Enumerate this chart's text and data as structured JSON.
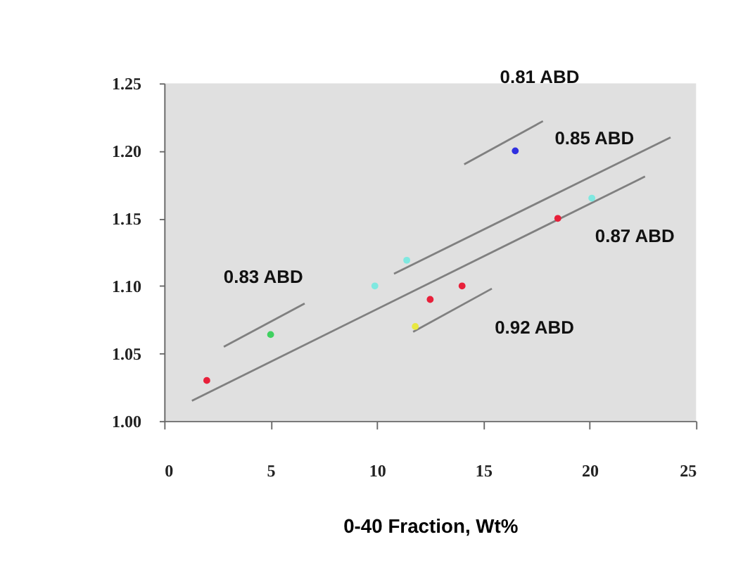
{
  "chart_data": {
    "type": "scatter",
    "xlabel": "0-40 Fraction, Wt%",
    "xlim": [
      0,
      25
    ],
    "xticks": [
      0,
      5,
      10,
      15,
      20,
      25
    ],
    "ylim": [
      1.0,
      1.25
    ],
    "yticks": [
      {
        "value": 1.0,
        "label": "1.00"
      },
      {
        "value": 1.05,
        "label": "1.05"
      },
      {
        "value": 1.1,
        "label": "1.10"
      },
      {
        "value": 1.15,
        "label": "1.15"
      },
      {
        "value": 1.2,
        "label": "1.20"
      },
      {
        "value": 1.25,
        "label": "1.25"
      }
    ],
    "grid": false,
    "series": [
      {
        "type": "line",
        "marker": "none",
        "color": "#808080",
        "x": [
          14.1,
          17.8
        ],
        "values": [
          1.19,
          1.222
        ]
      },
      {
        "type": "line",
        "marker": "none",
        "color": "#808080",
        "x": [
          10.8,
          23.8
        ],
        "values": [
          1.109,
          1.21
        ]
      },
      {
        "type": "line",
        "marker": "none",
        "color": "#808080",
        "x": [
          1.3,
          22.6
        ],
        "values": [
          1.015,
          1.181
        ]
      },
      {
        "type": "line",
        "marker": "none",
        "color": "#808080",
        "x": [
          2.8,
          6.6
        ],
        "values": [
          1.055,
          1.087
        ]
      },
      {
        "type": "line",
        "marker": "none",
        "color": "#808080",
        "x": [
          11.7,
          15.4
        ],
        "values": [
          1.066,
          1.098
        ]
      },
      {
        "marker": "circle",
        "color": "#3030e0",
        "x": [
          16.5
        ],
        "values": [
          1.2
        ]
      },
      {
        "marker": "circle",
        "color": "#7fe8e0",
        "x": [
          9.9,
          11.4,
          20.1
        ],
        "values": [
          1.1,
          1.119,
          1.165
        ]
      },
      {
        "marker": "circle",
        "color": "#e8203a",
        "x": [
          2.0,
          12.5,
          14.0,
          18.5
        ],
        "values": [
          1.03,
          1.09,
          1.1,
          1.15
        ]
      },
      {
        "marker": "circle",
        "color": "#40d060",
        "x": [
          5.0
        ],
        "values": [
          1.064
        ]
      },
      {
        "marker": "circle",
        "color": "#e8e840",
        "x": [
          11.8
        ],
        "values": [
          1.07
        ]
      }
    ],
    "annotations": [
      "0.81 ABD",
      "0.85 ABD",
      "0.87 ABD",
      "0.83 ABD",
      "0.92 ABD"
    ]
  }
}
